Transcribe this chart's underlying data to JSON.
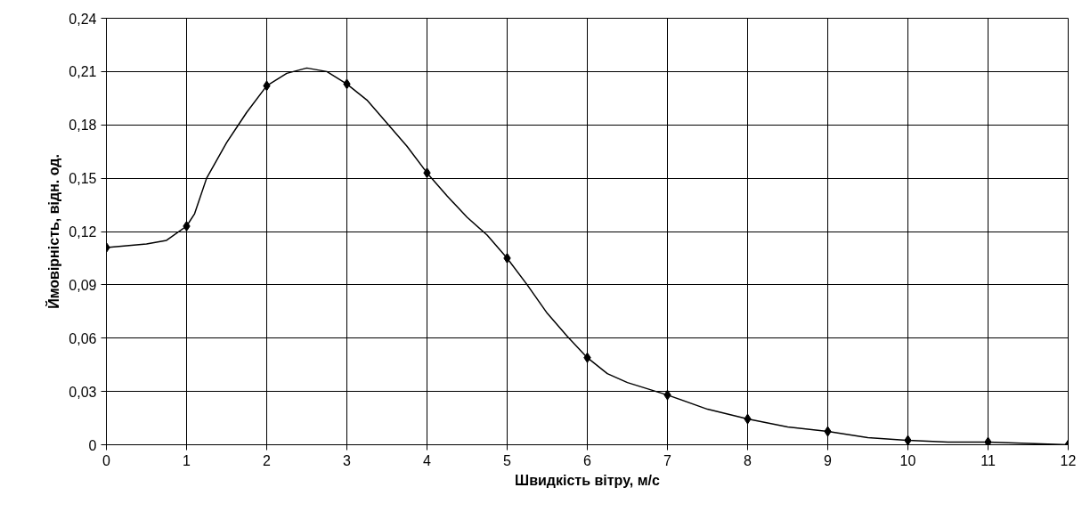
{
  "chart_data": {
    "type": "line",
    "xlabel": "Швидкість вітру, м/с",
    "ylabel": "Ймовірність, відн. од.",
    "xlim": [
      0,
      12
    ],
    "xticks": [
      0,
      1,
      2,
      3,
      4,
      5,
      6,
      7,
      8,
      9,
      10,
      11,
      12
    ],
    "ylim": [
      0,
      0.24
    ],
    "yticks": [
      {
        "value": 0,
        "label": "0"
      },
      {
        "value": 0.03,
        "label": "0,03"
      },
      {
        "value": 0.06,
        "label": "0,06"
      },
      {
        "value": 0.09,
        "label": "0,09"
      },
      {
        "value": 0.12,
        "label": "0,12"
      },
      {
        "value": 0.15,
        "label": "0,15"
      },
      {
        "value": 0.18,
        "label": "0,18"
      },
      {
        "value": 0.21,
        "label": "0,21"
      },
      {
        "value": 0.24,
        "label": "0,24"
      }
    ],
    "grid": true,
    "series": [
      {
        "marker": "none",
        "line_style": "solid",
        "color": "#000000",
        "x": [
          0,
          0.25,
          0.5,
          0.75,
          1,
          1.1,
          1.25,
          1.5,
          1.75,
          2,
          2.25,
          2.5,
          2.75,
          3,
          3.25,
          3.5,
          3.75,
          4,
          4.25,
          4.5,
          4.75,
          5,
          5.25,
          5.5,
          5.75,
          6,
          6.25,
          6.5,
          7,
          7.5,
          8,
          8.5,
          9,
          9.5,
          10,
          10.5,
          11,
          12
        ],
        "values": [
          0.111,
          0.112,
          0.113,
          0.115,
          0.123,
          0.13,
          0.15,
          0.17,
          0.187,
          0.202,
          0.209,
          0.212,
          0.21,
          0.203,
          0.194,
          0.181,
          0.168,
          0.153,
          0.14,
          0.128,
          0.118,
          0.105,
          0.09,
          0.074,
          0.061,
          0.049,
          0.04,
          0.035,
          0.028,
          0.02,
          0.0145,
          0.01,
          0.0075,
          0.004,
          0.0025,
          0.0015,
          0.0015,
          0
        ]
      },
      {
        "type": "scatter",
        "marker": "diamond",
        "color": "#000000",
        "x": [
          0,
          1,
          2,
          3,
          4,
          5,
          6,
          7,
          8,
          9,
          10,
          11,
          12
        ],
        "values": [
          0.111,
          0.123,
          0.202,
          0.203,
          0.153,
          0.105,
          0.049,
          0.028,
          0.0145,
          0.0075,
          0.0025,
          0.0015,
          0
        ]
      }
    ]
  }
}
